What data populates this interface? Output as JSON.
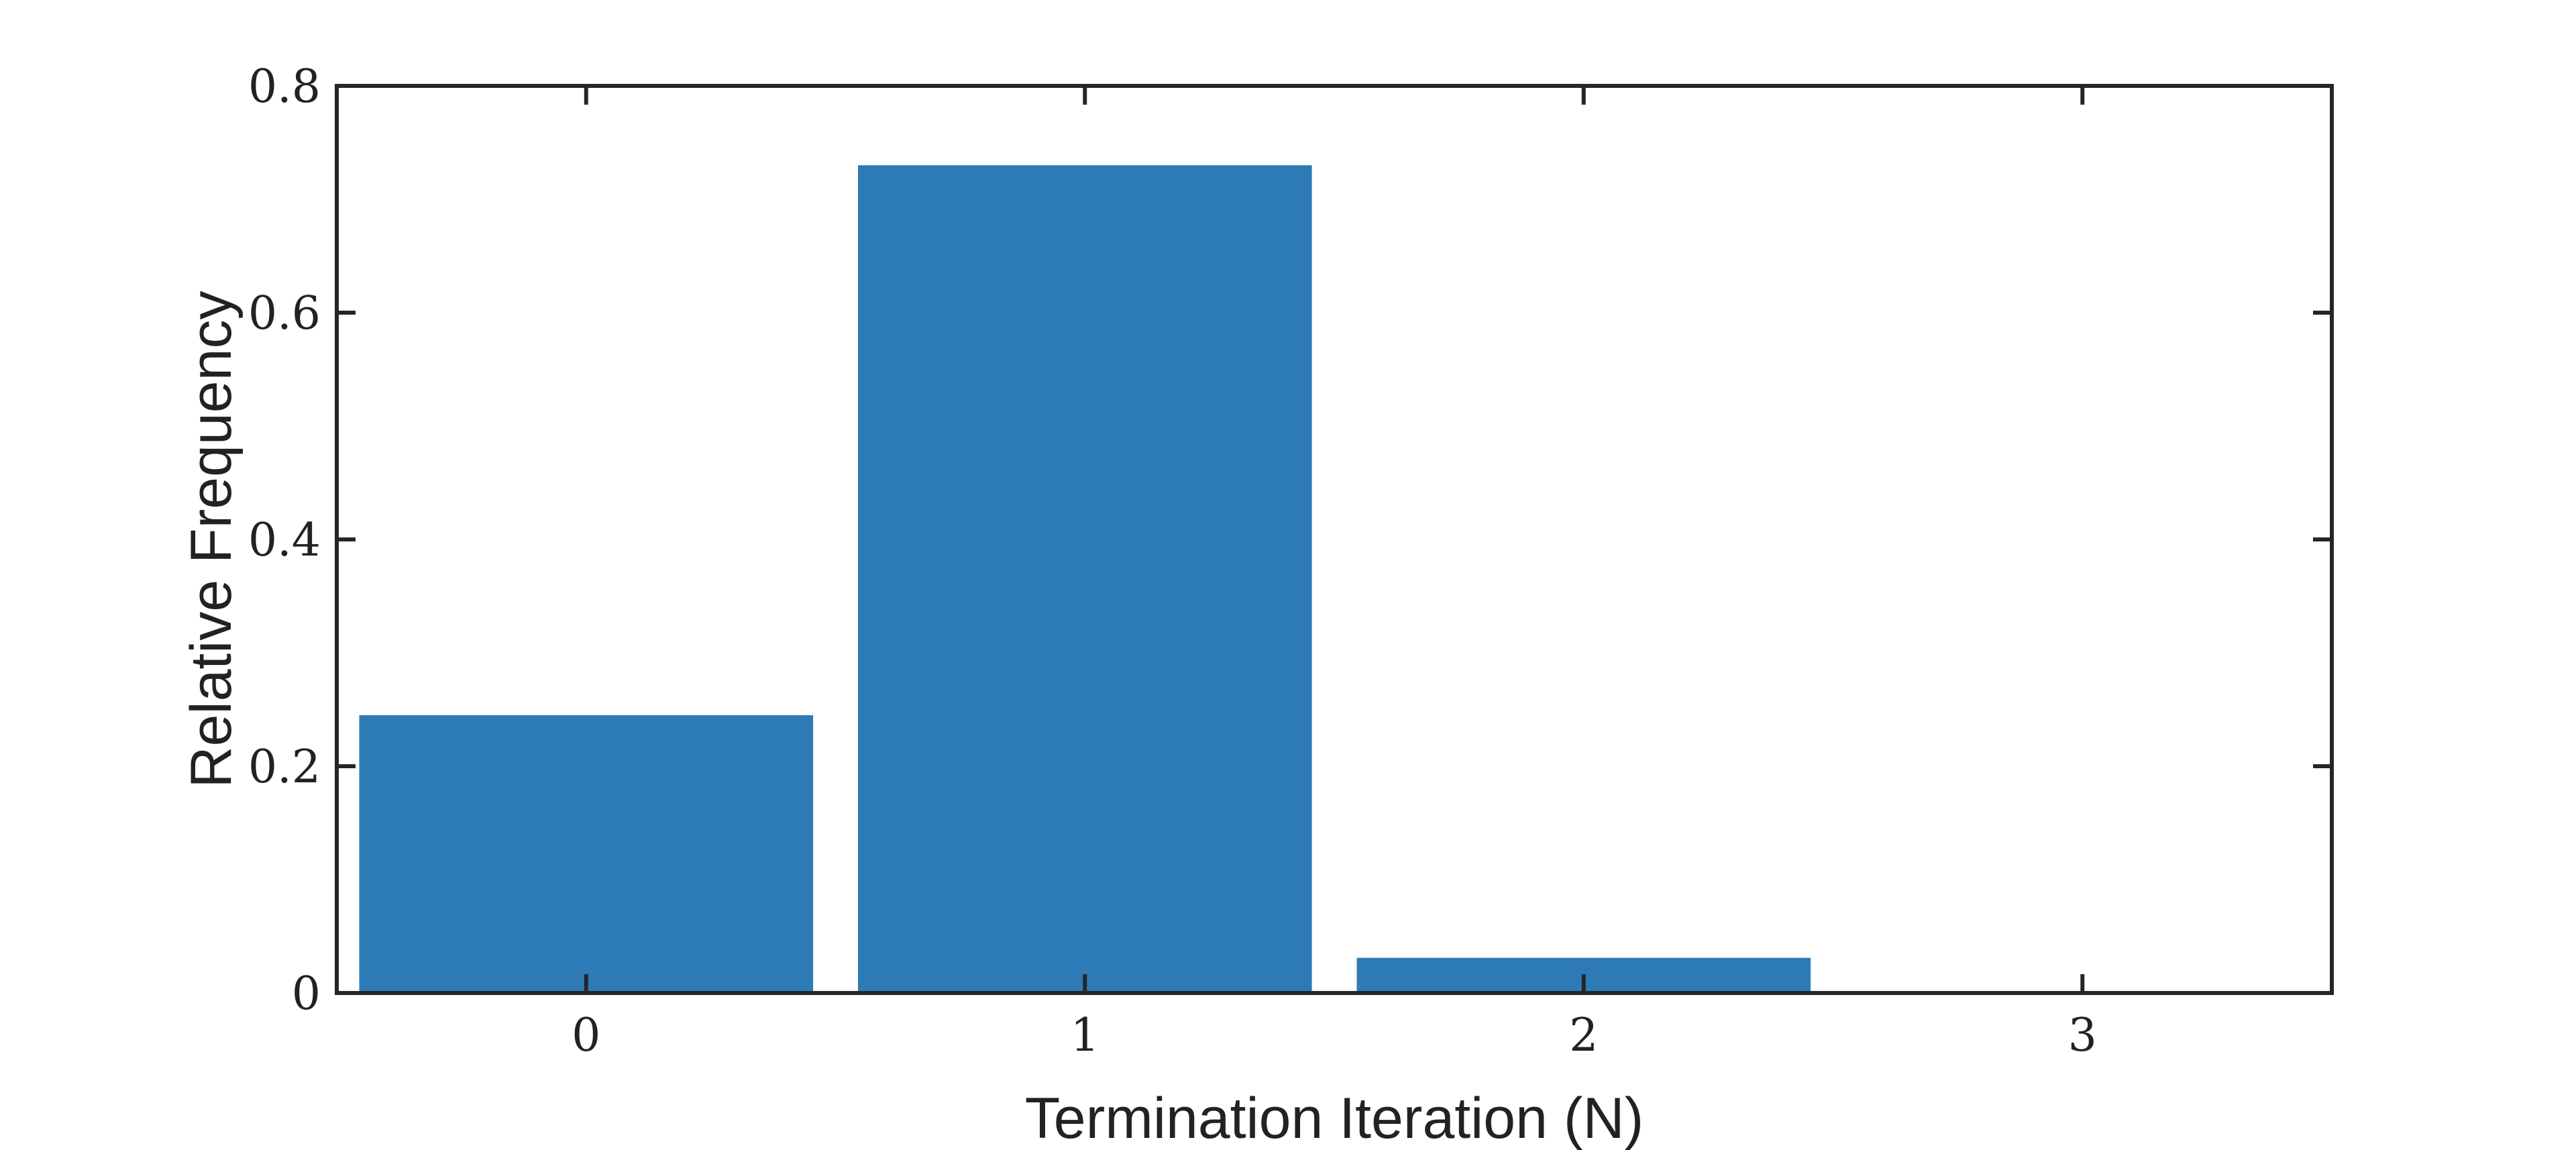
{
  "chart_data": {
    "type": "bar",
    "title": "",
    "xlabel": "Termination Iteration (N)",
    "ylabel": "Relative Frequency",
    "categories": [
      "0",
      "1",
      "2",
      "3"
    ],
    "values": [
      0.245,
      0.73,
      0.031,
      0.001
    ],
    "ylim": [
      0,
      0.8
    ],
    "yticks": [
      "0",
      "0.2",
      "0.4",
      "0.6",
      "0.8"
    ],
    "ytick_values": [
      0,
      0.2,
      0.4,
      0.6,
      0.8
    ],
    "grid": false,
    "legend": "none",
    "bar_color": "#2d7bb6"
  }
}
